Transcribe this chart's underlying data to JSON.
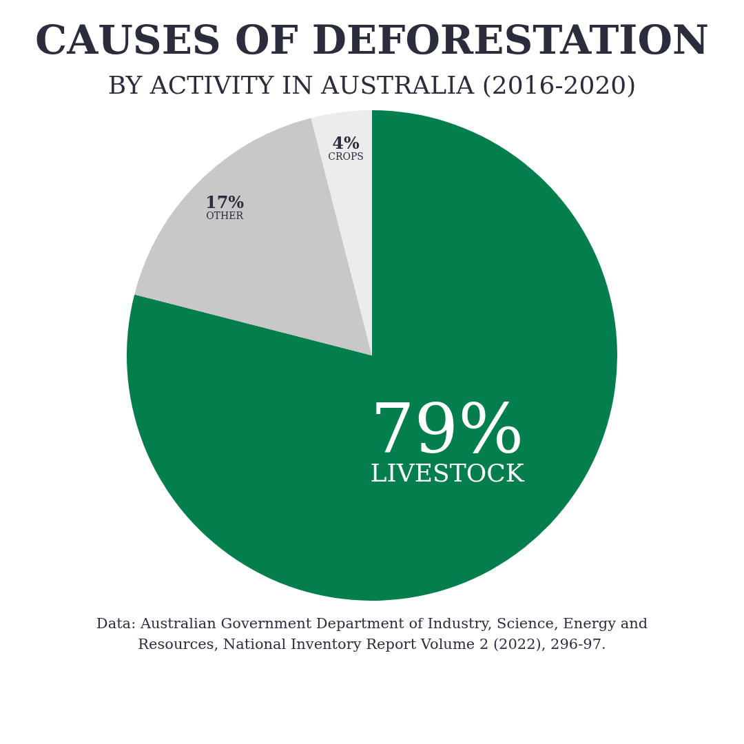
{
  "chart_data": {
    "type": "pie",
    "title": "CAUSES OF DEFORESTATION",
    "subtitle": "BY ACTIVITY IN AUSTRALIA (2016-2020)",
    "categories": [
      "LIVESTOCK",
      "OTHER",
      "CROPS"
    ],
    "values": [
      79,
      17,
      4
    ],
    "colors": [
      "#047e4c",
      "#c8c8c8",
      "#ececec"
    ],
    "value_labels": [
      "79%",
      "17%",
      "4%"
    ],
    "legend": false,
    "annotations": [
      "Data:  Australian Government Department of Industry, Science, Energy and Resources, National Inventory Report Volume 2 (2022), 296-97."
    ]
  }
}
